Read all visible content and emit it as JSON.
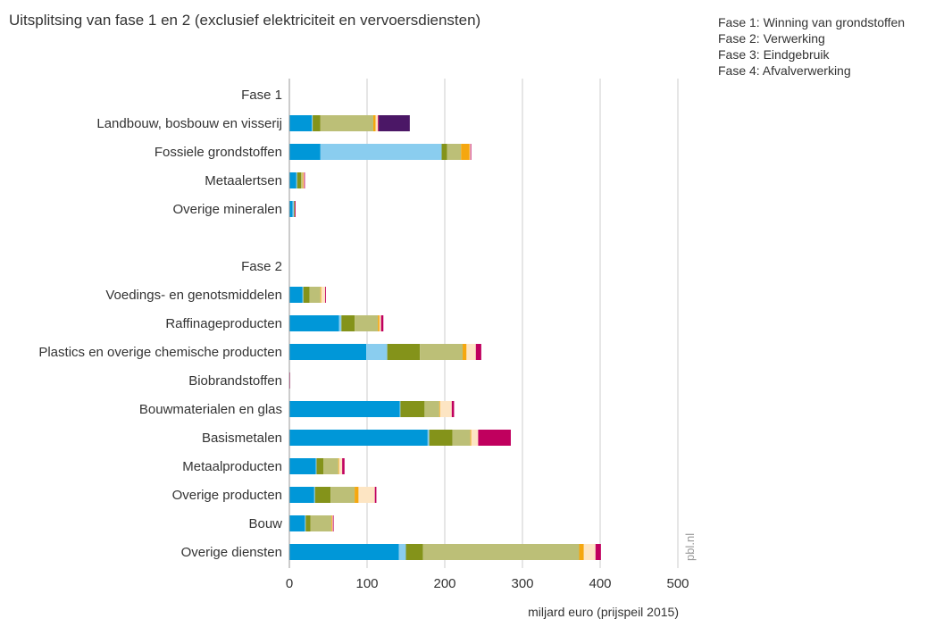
{
  "title": "Uitsplitsing van fase 1 en 2 (exclusief elektriciteit en vervoersdiensten)",
  "legend": [
    "Fase 1: Winning van grondstoffen",
    "Fase 2: Verwerking",
    "Fase 3: Eindgebruik",
    "Fase 4: Afvalverwerking"
  ],
  "source": "pbl.nl",
  "colors": [
    "#0097d8",
    "#8acdef",
    "#84931a",
    "#bcbf77",
    "#f5a70f",
    "#fde5c3",
    "#c0005e",
    "#4b1766"
  ],
  "chart_data": {
    "type": "bar",
    "orientation": "horizontal",
    "stacked": true,
    "categories": [
      "Fase 1",
      "Landbouw, bosbouw en visserij",
      "Fossiele grondstoffen",
      "Metaalertsen",
      "Overige mineralen",
      "",
      "Fase 2",
      "Voedings- en genotsmiddelen",
      "Raffinageproducten",
      "Plastics en overige chemische producten",
      "Biobrandstoffen",
      "Bouwmaterialen en glas",
      "Basismetalen",
      "Metaalproducten",
      "Overige producten",
      "Bouw",
      "Overige diensten"
    ],
    "series": [
      {
        "values": [
          0,
          29,
          40,
          9,
          4,
          0,
          0,
          17,
          64,
          99,
          0,
          142,
          178,
          34,
          32,
          20,
          141
        ]
      },
      {
        "values": [
          0,
          1,
          156,
          1,
          2,
          0,
          0,
          1,
          3,
          27,
          0,
          1,
          2,
          1,
          1,
          1,
          9
        ]
      },
      {
        "values": [
          0,
          10,
          7,
          5,
          1,
          0,
          0,
          8,
          17,
          42,
          0,
          31,
          30,
          9,
          20,
          6,
          22
        ]
      },
      {
        "values": [
          0,
          68,
          18,
          2,
          0,
          0,
          0,
          14,
          30,
          55,
          0,
          19,
          23,
          19,
          31,
          27,
          201
        ]
      },
      {
        "values": [
          0,
          3,
          11,
          1,
          0,
          0,
          0,
          1,
          2,
          5,
          0,
          1,
          1,
          1,
          5,
          1,
          6
        ]
      },
      {
        "values": [
          0,
          3,
          1,
          1,
          0,
          0,
          0,
          5,
          2,
          12,
          0,
          15,
          9,
          4,
          21,
          1,
          15
        ]
      },
      {
        "values": [
          0,
          1,
          1,
          1,
          1,
          0,
          0,
          1,
          3,
          7,
          1,
          3,
          42,
          3,
          2,
          1,
          7
        ]
      },
      {
        "values": [
          0,
          40,
          0,
          0,
          0,
          0,
          0,
          0,
          0,
          0,
          0,
          0,
          0,
          0,
          0,
          0,
          0
        ]
      }
    ],
    "xticks": [
      0,
      100,
      200,
      300,
      400,
      500
    ],
    "xlim": [
      0,
      500
    ],
    "xlabel": "miljard euro (prijspeil 2015)",
    "grid": "vertical"
  }
}
